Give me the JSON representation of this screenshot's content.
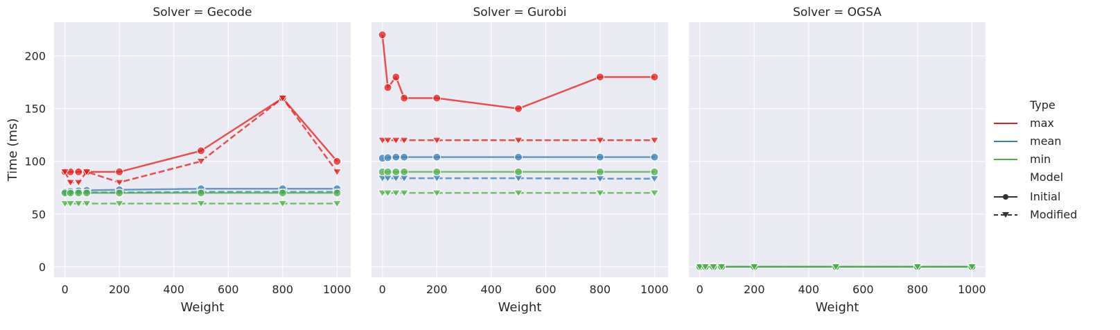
{
  "chart_data": {
    "type": "line",
    "facet_titles": [
      "Solver = Gecode",
      "Solver = Gurobi",
      "Solver = OGSA"
    ],
    "xlabel": "Weight",
    "ylabel": "Time (ms)",
    "xlim": [
      -40,
      1050
    ],
    "ylim": [
      -10,
      232
    ],
    "xticks": [
      0,
      200,
      400,
      600,
      800,
      1000
    ],
    "yticks": [
      0,
      50,
      100,
      150,
      200
    ],
    "x": [
      0,
      20,
      50,
      80,
      200,
      500,
      800,
      1000
    ],
    "grid": true,
    "colors": {
      "max": "#e41a1c",
      "mean": "#377eb8",
      "min": "#4daf4a"
    },
    "panels": [
      {
        "solver": "Gecode",
        "series": [
          {
            "type": "max",
            "model": "Initial",
            "values": [
              90,
              90,
              90,
              90,
              90,
              110,
              160,
              100
            ]
          },
          {
            "type": "max",
            "model": "Modified",
            "values": [
              90,
              80,
              80,
              90,
              80,
              100,
              160,
              90
            ]
          },
          {
            "type": "mean",
            "model": "Initial",
            "values": [
              71,
              71.5,
              72,
              72.5,
              73,
              74,
              74,
              74
            ]
          },
          {
            "type": "mean",
            "model": "Modified",
            "values": [
              70,
              70,
              70.5,
              70.5,
              70.5,
              71,
              71,
              71
            ]
          },
          {
            "type": "min",
            "model": "Initial",
            "values": [
              70,
              70,
              70,
              70,
              70,
              70,
              70,
              70
            ]
          },
          {
            "type": "min",
            "model": "Modified",
            "values": [
              60,
              60,
              60,
              60,
              60,
              60,
              60,
              60
            ]
          }
        ]
      },
      {
        "solver": "Gurobi",
        "series": [
          {
            "type": "max",
            "model": "Initial",
            "values": [
              220,
              170,
              180,
              160,
              160,
              150,
              180,
              180
            ]
          },
          {
            "type": "max",
            "model": "Modified",
            "values": [
              120,
              120,
              120,
              120,
              120,
              120,
              120,
              120
            ]
          },
          {
            "type": "mean",
            "model": "Initial",
            "values": [
              103,
              103.5,
              104,
              104,
              104,
              104,
              104,
              104
            ]
          },
          {
            "type": "mean",
            "model": "Modified",
            "values": [
              84,
              84,
              84,
              84,
              84,
              84,
              83.5,
              83.5
            ]
          },
          {
            "type": "min",
            "model": "Initial",
            "values": [
              90,
              90,
              90,
              90,
              90,
              90,
              90,
              90
            ]
          },
          {
            "type": "min",
            "model": "Modified",
            "values": [
              70,
              70,
              70,
              70,
              70,
              70,
              70,
              70
            ]
          }
        ]
      },
      {
        "solver": "OGSA",
        "series": [
          {
            "type": "max",
            "model": "Initial",
            "values": [
              0,
              0,
              0,
              0,
              0,
              0,
              0,
              0
            ]
          },
          {
            "type": "max",
            "model": "Modified",
            "values": [
              0,
              0,
              0,
              0,
              0,
              0,
              0,
              0
            ]
          },
          {
            "type": "mean",
            "model": "Initial",
            "values": [
              0,
              0,
              0,
              0,
              0,
              0,
              0,
              0
            ]
          },
          {
            "type": "mean",
            "model": "Modified",
            "values": [
              0,
              0,
              0,
              0,
              0,
              0,
              0,
              0
            ]
          },
          {
            "type": "min",
            "model": "Initial",
            "values": [
              0,
              0,
              0,
              0,
              0,
              0,
              0,
              0
            ]
          },
          {
            "type": "min",
            "model": "Modified",
            "values": [
              0,
              0,
              0,
              0,
              0,
              0,
              0,
              0
            ]
          }
        ]
      }
    ],
    "legend": {
      "placement": "right",
      "type_title": "Type",
      "type_entries": [
        "max",
        "mean",
        "min"
      ],
      "model_title": "Model",
      "model_entries": [
        "Initial",
        "Modified"
      ]
    }
  }
}
